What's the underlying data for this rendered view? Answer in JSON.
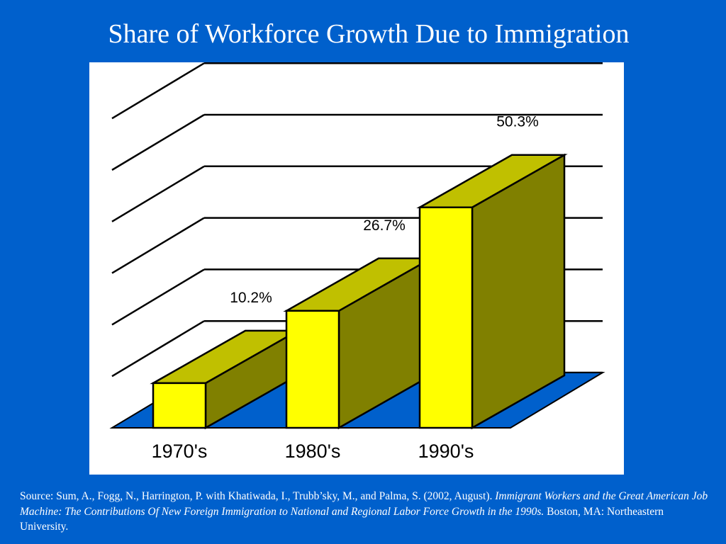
{
  "title": "Share of Workforce Growth Due to Immigration",
  "chart_data": {
    "type": "bar",
    "title": "Share of Workforce Growth Due to Immigration",
    "categories": [
      "1970's",
      "1980's",
      "1990's"
    ],
    "values": [
      10.2,
      26.7,
      50.3
    ],
    "value_labels": [
      "10.2%",
      "26.7%",
      "50.3%"
    ],
    "ylim": [
      0,
      50
    ],
    "grid": true,
    "three_d": true,
    "xlabel": "",
    "ylabel": ""
  },
  "colors": {
    "background": "#0060cc",
    "panel": "#ffffff",
    "floor": "#0060cc",
    "bar_front": "#ffff00",
    "bar_top": "#c0c000",
    "bar_side": "#808000",
    "title_text": "#ffffff"
  },
  "source": {
    "prefix": "Source: Sum, A., Fogg, N., Harrington, P. with Khatiwada, I., Trubb’sky, M., and Palma, S. (2002, August). ",
    "italic_title": "Immigrant Workers and the Great American Job Machine:  The Contributions Of New Foreign Immigration to National and Regional Labor Force Growth in the 1990s.",
    "suffix": "  Boston, MA:  Northeastern University."
  }
}
